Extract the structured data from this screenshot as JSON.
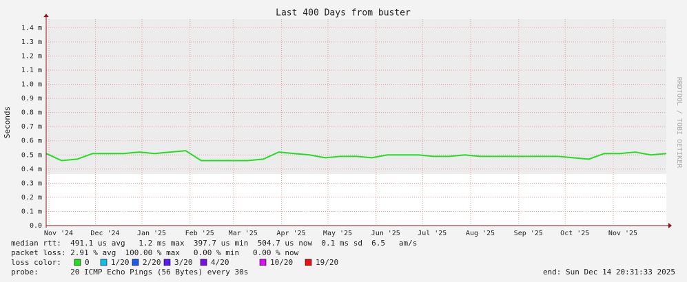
{
  "chart_data": {
    "type": "line",
    "title": "Last 400 Days from buster",
    "ylabel": "Seconds",
    "side_label": "RRDTOOL / TOBI OETIKER",
    "x": [
      0,
      10,
      20,
      30,
      40,
      50,
      60,
      70,
      80,
      90,
      100,
      110,
      120,
      130,
      140,
      150,
      160,
      170,
      180,
      190,
      200,
      210,
      220,
      230,
      240,
      250,
      260,
      270,
      280,
      290,
      300,
      310,
      320,
      330,
      340,
      350,
      360,
      370,
      380,
      390,
      400
    ],
    "series": [
      {
        "color": "#22dd22",
        "values": [
          0.51,
          0.46,
          0.47,
          0.51,
          0.51,
          0.51,
          0.52,
          0.51,
          0.52,
          0.53,
          0.46,
          0.46,
          0.46,
          0.46,
          0.47,
          0.52,
          0.51,
          0.5,
          0.48,
          0.49,
          0.49,
          0.48,
          0.5,
          0.5,
          0.5,
          0.49,
          0.49,
          0.5,
          0.49,
          0.49,
          0.49,
          0.49,
          0.49,
          0.49,
          0.48,
          0.47,
          0.51,
          0.51,
          0.52,
          0.5,
          0.51
        ]
      }
    ],
    "xlim": [
      0,
      400
    ],
    "xticks": [
      {
        "value": 8,
        "label": "Nov '24"
      },
      {
        "value": 38,
        "label": "Dec '24"
      },
      {
        "value": 68,
        "label": "Jan '25"
      },
      {
        "value": 99,
        "label": "Feb '25"
      },
      {
        "value": 127,
        "label": "Mar '25"
      },
      {
        "value": 158,
        "label": "Apr '25"
      },
      {
        "value": 188,
        "label": "May '25"
      },
      {
        "value": 219,
        "label": "Jun '25"
      },
      {
        "value": 249,
        "label": "Jul '25"
      },
      {
        "value": 280,
        "label": "Aug '25"
      },
      {
        "value": 311,
        "label": "Sep '25"
      },
      {
        "value": 341,
        "label": "Oct '25"
      },
      {
        "value": 372,
        "label": "Nov '25"
      }
    ],
    "ylim": [
      0,
      1.46
    ],
    "yticks": [
      {
        "value": 0,
        "label": "0.0"
      },
      {
        "value": 0.1,
        "label": "0.1 m"
      },
      {
        "value": 0.2,
        "label": "0.2 m"
      },
      {
        "value": 0.3,
        "label": "0.3 m"
      },
      {
        "value": 0.4,
        "label": "0.4 m"
      },
      {
        "value": 0.5,
        "label": "0.5 m"
      },
      {
        "value": 0.6,
        "label": "0.6 m"
      },
      {
        "value": 0.7,
        "label": "0.7 m"
      },
      {
        "value": 0.8,
        "label": "0.8 m"
      },
      {
        "value": 0.9,
        "label": "0.9 m"
      },
      {
        "value": 1.0,
        "label": "1.0 m"
      },
      {
        "value": 1.1,
        "label": "1.1 m"
      },
      {
        "value": 1.2,
        "label": "1.2 m"
      },
      {
        "value": 1.3,
        "label": "1.3 m"
      },
      {
        "value": 1.4,
        "label": "1.4 m"
      }
    ],
    "grid": true,
    "notes": [
      "median rtt:  491.1 us avg   1.2 ms max  397.7 us min  504.7 us now  0.1 ms sd  6.5   am/s",
      "packet loss: 2.91 % avg  100.00 % max   0.00 % min   0.00 % now",
      "probe:       20 ICMP Echo Pings (56 Bytes) every 30s"
    ],
    "loss_label": "loss color:",
    "loss_colors": [
      {
        "label": "0",
        "color": "#22dd22"
      },
      {
        "label": "1/20",
        "color": "#0bbfe8"
      },
      {
        "label": "2/20",
        "color": "#1a5cf0"
      },
      {
        "label": "3/20",
        "color": "#5a1af0"
      },
      {
        "label": "4/20",
        "color": "#7a10e0"
      },
      {
        "label": "10/20",
        "color": "#dd10ee"
      },
      {
        "label": "19/20",
        "color": "#ee1010"
      }
    ],
    "end_label": "end: Sun Dec 14 20:31:33 2025"
  }
}
